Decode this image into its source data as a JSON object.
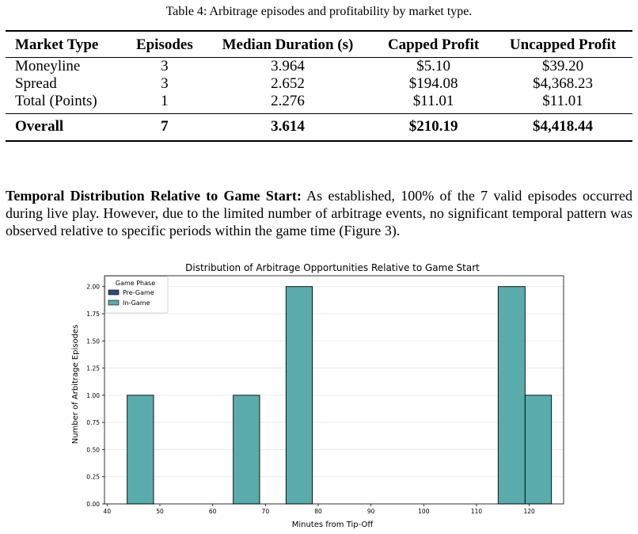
{
  "table": {
    "caption": "Table 4: Arbitrage episodes and profitability by market type.",
    "headers": [
      "Market Type",
      "Episodes",
      "Median Duration (s)",
      "Capped Profit",
      "Uncapped Profit"
    ],
    "rows": [
      [
        "Moneyline",
        "3",
        "3.964",
        "$5.10",
        "$39.20"
      ],
      [
        "Spread",
        "3",
        "2.652",
        "$194.08",
        "$4,368.23"
      ],
      [
        "Total (Points)",
        "1",
        "2.276",
        "$11.01",
        "$11.01"
      ]
    ],
    "total": [
      "Overall",
      "7",
      "3.614",
      "$210.19",
      "$4,418.44"
    ]
  },
  "paragraph": {
    "heading": "Temporal Distribution Relative to Game Start:",
    "text": " As established, 100% of the 7 valid episodes occurred during live play. However, due to the limited number of arbitrage events, no significant temporal pattern was observed relative to specific periods within the game time (Figure 3)."
  },
  "chart_data": {
    "type": "bar",
    "title": "Distribution of Arbitrage Opportunities Relative to Game Start",
    "xlabel": "Minutes from Tip-Off",
    "ylabel": "Number of Arbitrage Episodes",
    "xlim": [
      39.5,
      126.5
    ],
    "ylim": [
      0,
      2.1
    ],
    "xticks": [
      "40",
      "50",
      "60",
      "70",
      "80",
      "90",
      "100",
      "110",
      "120"
    ],
    "yticks": [
      "0.00",
      "0.25",
      "0.50",
      "0.75",
      "1.00",
      "1.25",
      "1.50",
      "1.75",
      "2.00"
    ],
    "grid": true,
    "legend": {
      "title": "Game Phase",
      "position": "top-left",
      "entries": [
        {
          "name": "Pre-Game",
          "color": "#2f4b7c"
        },
        {
          "name": "In-Game",
          "color": "#5aacac"
        }
      ]
    },
    "series": [
      {
        "name": "Pre-Game",
        "bins": []
      },
      {
        "name": "In-Game",
        "bins": [
          {
            "x0": 43.8,
            "x1": 48.8,
            "count": 1
          },
          {
            "x0": 63.9,
            "x1": 68.9,
            "count": 1
          },
          {
            "x0": 73.9,
            "x1": 78.9,
            "count": 2
          },
          {
            "x0": 114.1,
            "x1": 119.2,
            "count": 2
          },
          {
            "x0": 119.2,
            "x1": 124.2,
            "count": 1
          }
        ]
      }
    ]
  }
}
